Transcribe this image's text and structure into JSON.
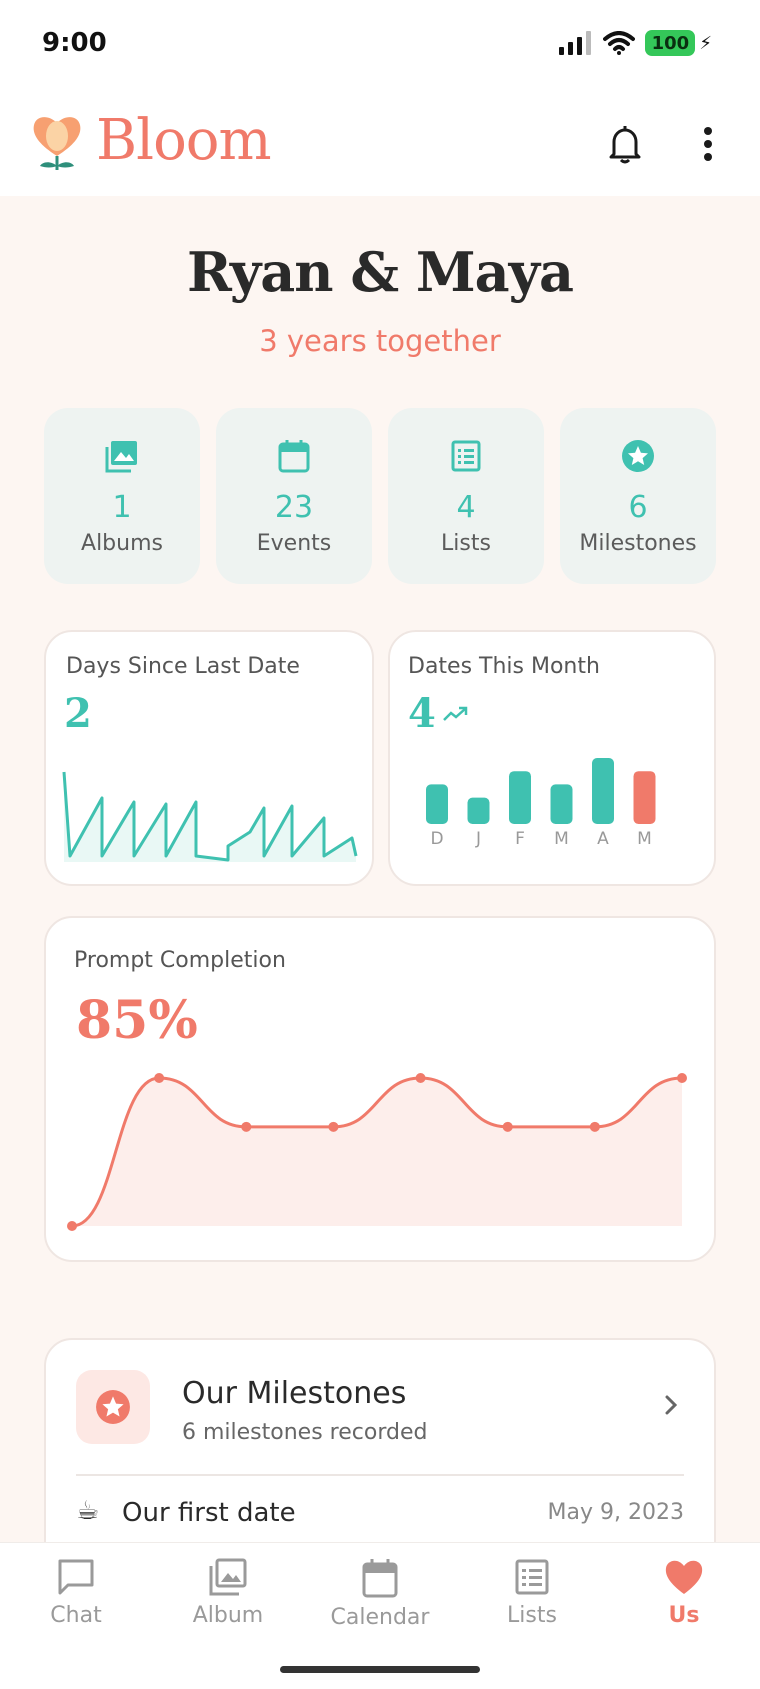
{
  "status_bar": {
    "time": "9:00",
    "battery": "100"
  },
  "header": {
    "app_name": "Bloom"
  },
  "hero": {
    "couple": "Ryan & Maya",
    "together": "3 years together"
  },
  "stats": [
    {
      "icon": "photo-album-icon",
      "value": "1",
      "label": "Albums"
    },
    {
      "icon": "calendar-icon",
      "value": "23",
      "label": "Events"
    },
    {
      "icon": "list-icon",
      "value": "4",
      "label": "Lists"
    },
    {
      "icon": "star-badge-icon",
      "value": "6",
      "label": "Milestones"
    }
  ],
  "days_card": {
    "label": "Days Since Last Date",
    "value": "2"
  },
  "dates_card": {
    "label": "Dates This Month",
    "value": "4",
    "trend_icon": "trending-up-icon",
    "bars": [
      {
        "month": "D",
        "value": 3,
        "highlight": false
      },
      {
        "month": "J",
        "value": 2,
        "highlight": false
      },
      {
        "month": "F",
        "value": 4,
        "highlight": false
      },
      {
        "month": "M",
        "value": 3,
        "highlight": false
      },
      {
        "month": "A",
        "value": 5,
        "highlight": false
      },
      {
        "month": "M",
        "value": 4,
        "highlight": true
      }
    ]
  },
  "prompt_card": {
    "label": "Prompt Completion",
    "value": "85%",
    "points": [
      0,
      100,
      67,
      67,
      100,
      67,
      67,
      100
    ]
  },
  "milestones": {
    "title": "Our Milestones",
    "subtitle": "6 milestones recorded",
    "items": [
      {
        "icon": "coffee-icon",
        "glyph": "☕",
        "label": "Our first date",
        "date": "May 9, 2023"
      }
    ]
  },
  "nav": [
    {
      "icon": "chat-icon",
      "label": "Chat",
      "active": false
    },
    {
      "icon": "album-icon",
      "label": "Album",
      "active": false
    },
    {
      "icon": "calendar-icon",
      "label": "Calendar",
      "active": false
    },
    {
      "icon": "list-icon",
      "label": "Lists",
      "active": false
    },
    {
      "icon": "heart-icon",
      "label": "Us",
      "active": true
    }
  ],
  "colors": {
    "teal": "#3fc1b0",
    "coral": "#f07a6a",
    "tile_bg": "#eef3f1"
  }
}
